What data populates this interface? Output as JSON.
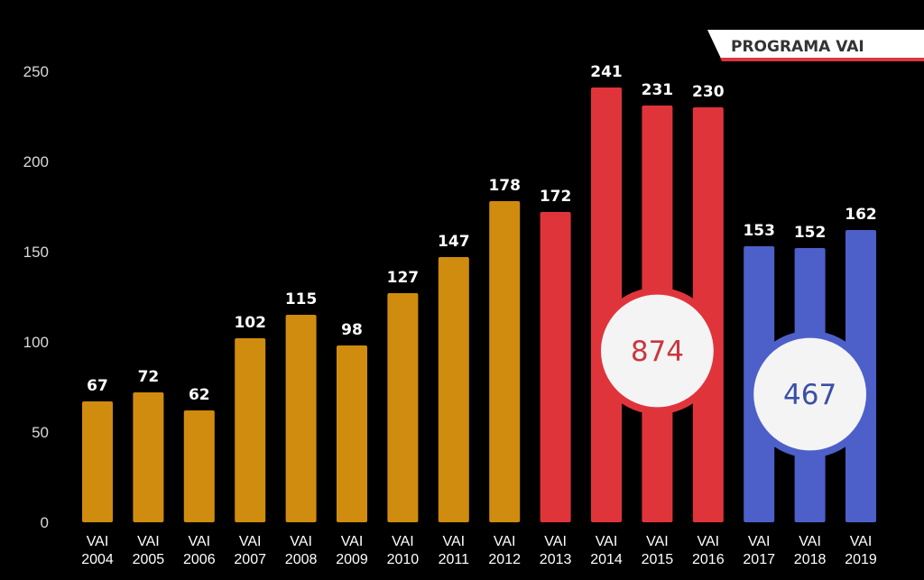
{
  "header": {
    "program_label": "PROGRAMA VAI"
  },
  "chart_data": {
    "type": "bar",
    "title": "",
    "xlabel": "",
    "ylabel": "",
    "ylim": [
      0,
      250
    ],
    "yticks": [
      0,
      50,
      100,
      150,
      200,
      250
    ],
    "grid": false,
    "categories": [
      [
        "VAI",
        "2004"
      ],
      [
        "VAI",
        "2005"
      ],
      [
        "VAI",
        "2006"
      ],
      [
        "VAI",
        "2007"
      ],
      [
        "VAI",
        "2008"
      ],
      [
        "VAI",
        "2009"
      ],
      [
        "VAI",
        "2010"
      ],
      [
        "VAI",
        "2011"
      ],
      [
        "VAI",
        "2012"
      ],
      [
        "VAI",
        "2013"
      ],
      [
        "VAI",
        "2014"
      ],
      [
        "VAI",
        "2015"
      ],
      [
        "VAI",
        "2016"
      ],
      [
        "VAI",
        "2017"
      ],
      [
        "VAI",
        "2018"
      ],
      [
        "VAI",
        "2019"
      ]
    ],
    "values": [
      67,
      72,
      62,
      102,
      115,
      98,
      127,
      147,
      178,
      172,
      241,
      231,
      230,
      153,
      152,
      162
    ],
    "bar_groups": [
      {
        "from": 0,
        "to": 8,
        "color": "#d08c0e"
      },
      {
        "from": 9,
        "to": 12,
        "color": "#e0343b"
      },
      {
        "from": 13,
        "to": 15,
        "color": "#4d60c9"
      }
    ],
    "annotations": [
      {
        "text": "874",
        "color": "#c8373f",
        "ring_color": "#e0343b",
        "over_categories": [
          10,
          12
        ],
        "value_center": 95
      },
      {
        "text": "467",
        "color": "#3a4fa6",
        "ring_color": "#4d60c9",
        "over_categories": [
          13,
          15
        ],
        "value_center": 71
      }
    ]
  }
}
